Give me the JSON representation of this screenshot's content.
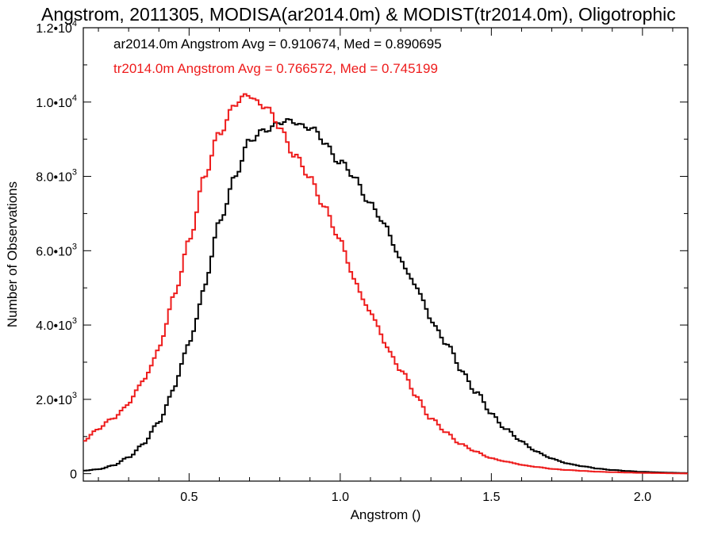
{
  "chart_data": {
    "type": "line",
    "title": "Angstrom, 2011305, MODISA(ar2014.0m) & MODIST(tr2014.0m), Oligotrophic",
    "xlabel": "Angstrom ()",
    "ylabel": "Number of Observations",
    "xlim": [
      0.15,
      2.15
    ],
    "ylim": [
      -200,
      12000
    ],
    "x_ticks": [
      {
        "value": 0.5,
        "label": "0.5"
      },
      {
        "value": 1.0,
        "label": "1.0"
      },
      {
        "value": 1.5,
        "label": "1.5"
      },
      {
        "value": 2.0,
        "label": "2.0"
      }
    ],
    "y_ticks": [
      {
        "value": 0,
        "mantissa": "0",
        "exp": ""
      },
      {
        "value": 2000,
        "mantissa": "2.0•10",
        "exp": "3"
      },
      {
        "value": 4000,
        "mantissa": "4.0•10",
        "exp": "3"
      },
      {
        "value": 6000,
        "mantissa": "6.0•10",
        "exp": "3"
      },
      {
        "value": 8000,
        "mantissa": "8.0•10",
        "exp": "3"
      },
      {
        "value": 10000,
        "mantissa": "1.0•10",
        "exp": "4"
      },
      {
        "value": 12000,
        "mantissa": "1.2•10",
        "exp": "4"
      }
    ],
    "grid": false,
    "legend_position": "top-left",
    "series": [
      {
        "name": "ar2014.0m",
        "legend": "ar2014.0m Angstrom Avg = 0.910674, Med = 0.890695",
        "color": "#000000",
        "x": [
          0.15,
          0.2,
          0.25,
          0.3,
          0.35,
          0.4,
          0.45,
          0.5,
          0.55,
          0.6,
          0.65,
          0.7,
          0.75,
          0.8,
          0.85,
          0.9,
          0.95,
          1.0,
          1.05,
          1.1,
          1.15,
          1.2,
          1.25,
          1.3,
          1.35,
          1.4,
          1.45,
          1.5,
          1.55,
          1.6,
          1.65,
          1.7,
          1.75,
          1.8,
          1.85,
          1.9,
          1.95,
          2.0,
          2.05,
          2.1,
          2.15
        ],
        "y": [
          80,
          120,
          220,
          450,
          800,
          1400,
          2300,
          3500,
          5000,
          6700,
          8000,
          8900,
          9300,
          9400,
          9500,
          9300,
          8900,
          8400,
          7900,
          7300,
          6600,
          5800,
          5000,
          4200,
          3500,
          2800,
          2200,
          1600,
          1200,
          850,
          600,
          400,
          280,
          200,
          140,
          100,
          70,
          50,
          35,
          25,
          15
        ]
      },
      {
        "name": "tr2014.0m",
        "legend": "tr2014.0m Angstrom Avg = 0.766572, Med = 0.745199",
        "color": "#ee1c1c",
        "x": [
          0.15,
          0.2,
          0.25,
          0.3,
          0.35,
          0.4,
          0.45,
          0.5,
          0.55,
          0.6,
          0.65,
          0.7,
          0.75,
          0.8,
          0.85,
          0.9,
          0.95,
          1.0,
          1.05,
          1.1,
          1.15,
          1.2,
          1.25,
          1.3,
          1.35,
          1.4,
          1.45,
          1.5,
          1.55,
          1.6,
          1.65,
          1.7,
          1.75,
          1.8,
          1.85,
          1.9,
          1.95,
          2.0,
          2.05,
          2.1,
          2.15
        ],
        "y": [
          900,
          1200,
          1500,
          1900,
          2500,
          3400,
          4700,
          6300,
          7900,
          9200,
          9900,
          10200,
          9900,
          9300,
          8600,
          7900,
          7200,
          6200,
          5200,
          4300,
          3500,
          2800,
          2100,
          1500,
          1100,
          800,
          580,
          420,
          320,
          240,
          180,
          130,
          100,
          75,
          55,
          40,
          30,
          20,
          15,
          10,
          5
        ]
      }
    ]
  }
}
